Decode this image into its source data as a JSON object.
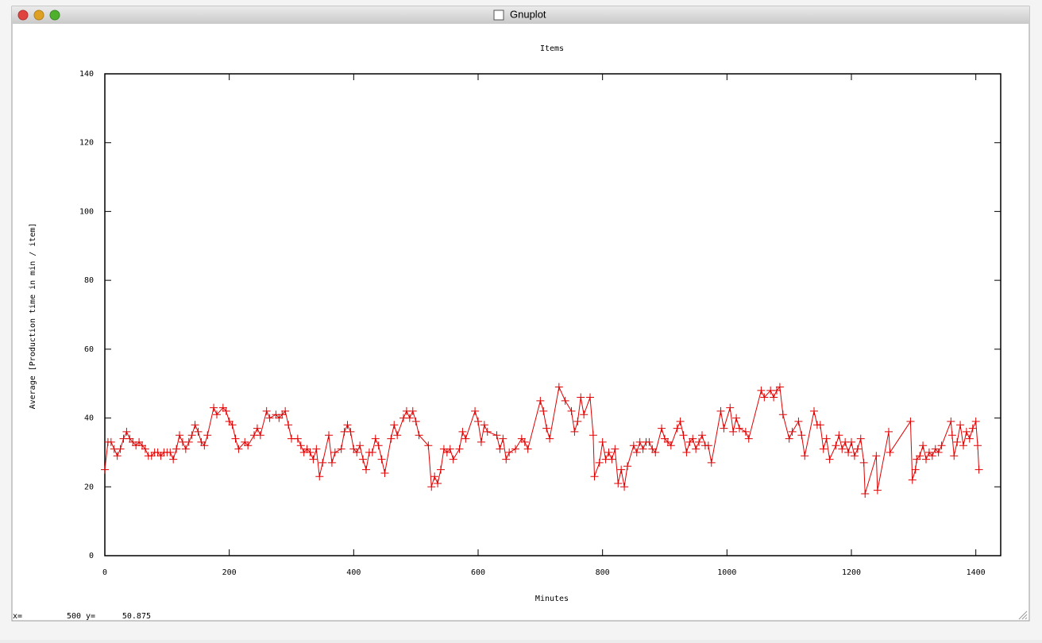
{
  "window": {
    "title": "Gnuplot",
    "status": {
      "x_label": "x=",
      "x": 500,
      "y_label": "y=",
      "y": 50.875
    }
  },
  "chart_data": {
    "type": "line",
    "title": "Items",
    "x_label": "Minutes",
    "y_label": "Average [Production time in min / item]",
    "xlim": [
      0,
      1440
    ],
    "xticks": [
      0,
      200,
      400,
      600,
      800,
      1000,
      1200,
      1400
    ],
    "ylim": [
      0,
      140
    ],
    "yticks": [
      0,
      20,
      40,
      60,
      80,
      100,
      120,
      140
    ],
    "x": [
      0,
      5,
      10,
      15,
      20,
      25,
      30,
      35,
      40,
      45,
      50,
      55,
      60,
      65,
      70,
      75,
      80,
      85,
      90,
      95,
      100,
      105,
      110,
      115,
      120,
      125,
      130,
      135,
      140,
      145,
      150,
      155,
      160,
      165,
      175,
      180,
      190,
      195,
      200,
      205,
      210,
      215,
      225,
      230,
      240,
      245,
      250,
      260,
      265,
      275,
      280,
      285,
      290,
      295,
      300,
      310,
      315,
      320,
      325,
      330,
      335,
      340,
      345,
      350,
      360,
      365,
      370,
      380,
      385,
      390,
      395,
      400,
      405,
      410,
      415,
      420,
      425,
      430,
      435,
      440,
      445,
      450,
      460,
      465,
      470,
      480,
      485,
      490,
      495,
      500,
      505,
      520,
      525,
      530,
      535,
      540,
      545,
      550,
      555,
      560,
      570,
      575,
      580,
      595,
      600,
      605,
      610,
      615,
      630,
      635,
      640,
      645,
      650,
      660,
      670,
      675,
      680,
      700,
      705,
      710,
      715,
      730,
      740,
      750,
      755,
      760,
      765,
      770,
      780,
      785,
      787,
      795,
      800,
      805,
      810,
      815,
      820,
      825,
      830,
      835,
      840,
      850,
      855,
      860,
      865,
      870,
      875,
      880,
      885,
      895,
      900,
      905,
      910,
      920,
      925,
      930,
      935,
      940,
      945,
      950,
      955,
      960,
      965,
      970,
      975,
      990,
      995,
      1005,
      1010,
      1015,
      1020,
      1030,
      1035,
      1055,
      1060,
      1070,
      1075,
      1080,
      1085,
      1090,
      1100,
      1105,
      1115,
      1120,
      1125,
      1140,
      1145,
      1150,
      1155,
      1160,
      1165,
      1175,
      1180,
      1185,
      1190,
      1195,
      1200,
      1205,
      1210,
      1215,
      1220,
      1222,
      1240,
      1242,
      1260,
      1262,
      1295,
      1298,
      1303,
      1305,
      1310,
      1315,
      1320,
      1325,
      1330,
      1335,
      1340,
      1345,
      1360,
      1362,
      1365,
      1370,
      1375,
      1380,
      1385,
      1390,
      1395,
      1400,
      1403,
      1405
    ],
    "series": [
      {
        "color": "#e00000",
        "values": [
          25,
          33,
          33,
          31,
          29,
          31,
          34,
          36,
          34,
          33,
          32,
          33,
          32,
          31,
          29,
          29,
          30,
          30,
          29,
          30,
          30,
          30,
          28,
          31,
          35,
          33,
          31,
          33,
          35,
          38,
          36,
          33,
          32,
          35,
          43,
          41,
          43,
          42,
          39,
          38,
          34,
          31,
          33,
          32,
          35,
          37,
          35,
          42,
          40,
          41,
          40,
          41,
          42,
          38,
          34,
          34,
          32,
          30,
          31,
          30,
          28,
          31,
          23,
          27,
          35,
          27,
          30,
          31,
          36,
          38,
          36,
          31,
          30,
          32,
          28,
          25,
          30,
          30,
          34,
          32,
          28,
          24,
          34,
          38,
          35,
          40,
          42,
          40,
          42,
          39,
          35,
          32,
          20,
          23,
          21,
          25,
          31,
          30,
          31,
          28,
          31,
          36,
          34,
          42,
          39,
          33,
          38,
          36,
          35,
          31,
          34,
          28,
          30,
          31,
          34,
          33,
          31,
          45,
          42,
          37,
          34,
          49,
          45,
          42,
          36,
          39,
          46,
          41,
          46,
          35,
          23,
          27,
          33,
          28,
          30,
          28,
          31,
          21,
          25,
          20,
          26,
          32,
          30,
          33,
          31,
          33,
          33,
          31,
          30,
          37,
          34,
          33,
          32,
          37,
          39,
          35,
          30,
          33,
          34,
          31,
          33,
          35,
          32,
          32,
          27,
          42,
          37,
          43,
          36,
          40,
          37,
          36,
          34,
          48,
          46,
          48,
          46,
          48,
          49,
          41,
          34,
          36,
          39,
          35,
          29,
          42,
          38,
          38,
          31,
          34,
          28,
          32,
          35,
          31,
          33,
          30,
          33,
          29,
          31,
          34,
          27,
          18,
          29,
          19,
          36,
          30,
          39,
          22,
          25,
          28,
          29,
          32,
          28,
          30,
          29,
          31,
          30,
          32,
          39,
          35,
          29,
          33,
          38,
          32,
          36,
          34,
          37,
          39,
          32,
          25
        ]
      }
    ]
  }
}
